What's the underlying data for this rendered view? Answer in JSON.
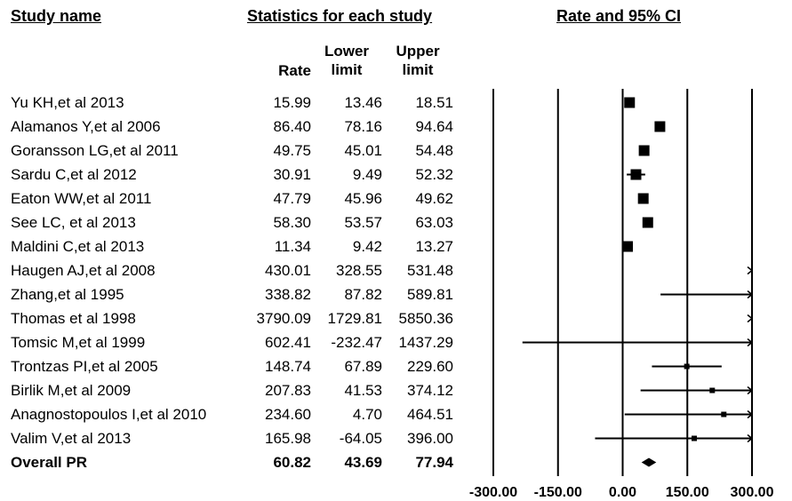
{
  "headers": {
    "study_name": "Study name",
    "statistics": "Statistics for each study",
    "plot": "Rate and 95% CI",
    "rate": "Rate",
    "lower_line1": "Lower",
    "lower_line2": "limit",
    "upper_line1": "Upper",
    "upper_line2": "limit"
  },
  "chart_data": {
    "type": "forest",
    "title": "Rate and 95% CI",
    "xlim": [
      -300,
      300
    ],
    "x_ticks": [
      -300,
      -150,
      0,
      150,
      300
    ],
    "x_tick_labels": [
      "-300.00",
      "-150.00",
      "0.00",
      "150.00",
      "300.00"
    ],
    "studies": [
      {
        "name": "Yu KH,et al 2013",
        "rate": "15.99",
        "lower": "13.46",
        "upper": "18.51"
      },
      {
        "name": "Alamanos Y,et al 2006",
        "rate": "86.40",
        "lower": "78.16",
        "upper": "94.64"
      },
      {
        "name": "Goransson LG,et al 2011",
        "rate": "49.75",
        "lower": "45.01",
        "upper": "54.48"
      },
      {
        "name": "Sardu C,et al 2012",
        "rate": "30.91",
        "lower": "9.49",
        "upper": "52.32"
      },
      {
        "name": "Eaton WW,et al 2011",
        "rate": "47.79",
        "lower": "45.96",
        "upper": "49.62"
      },
      {
        "name": "See LC, et al 2013",
        "rate": "58.30",
        "lower": "53.57",
        "upper": "63.03"
      },
      {
        "name": "Maldini C,et al 2013",
        "rate": "11.34",
        "lower": "9.42",
        "upper": "13.27"
      },
      {
        "name": "Haugen AJ,et al 2008",
        "rate": "430.01",
        "lower": "328.55",
        "upper": "531.48"
      },
      {
        "name": "Zhang,et al 1995",
        "rate": "338.82",
        "lower": "87.82",
        "upper": "589.81"
      },
      {
        "name": "Thomas et al 1998",
        "rate": "3790.09",
        "lower": "1729.81",
        "upper": "5850.36"
      },
      {
        "name": "Tomsic M,et al 1999",
        "rate": "602.41",
        "lower": "-232.47",
        "upper": "1437.29"
      },
      {
        "name": "Trontzas PI,et al 2005",
        "rate": "148.74",
        "lower": "67.89",
        "upper": "229.60"
      },
      {
        "name": "Birlik M,et al 2009",
        "rate": "207.83",
        "lower": "41.53",
        "upper": "374.12"
      },
      {
        "name": "Anagnostopoulos I,et al 2010",
        "rate": "234.60",
        "lower": "4.70",
        "upper": "464.51"
      },
      {
        "name": "Valim V,et al 2013",
        "rate": "165.98",
        "lower": "-64.05",
        "upper": "396.00"
      }
    ],
    "overall": {
      "name": "Overall PR",
      "rate": "60.82",
      "lower": "43.69",
      "upper": "77.94"
    }
  }
}
